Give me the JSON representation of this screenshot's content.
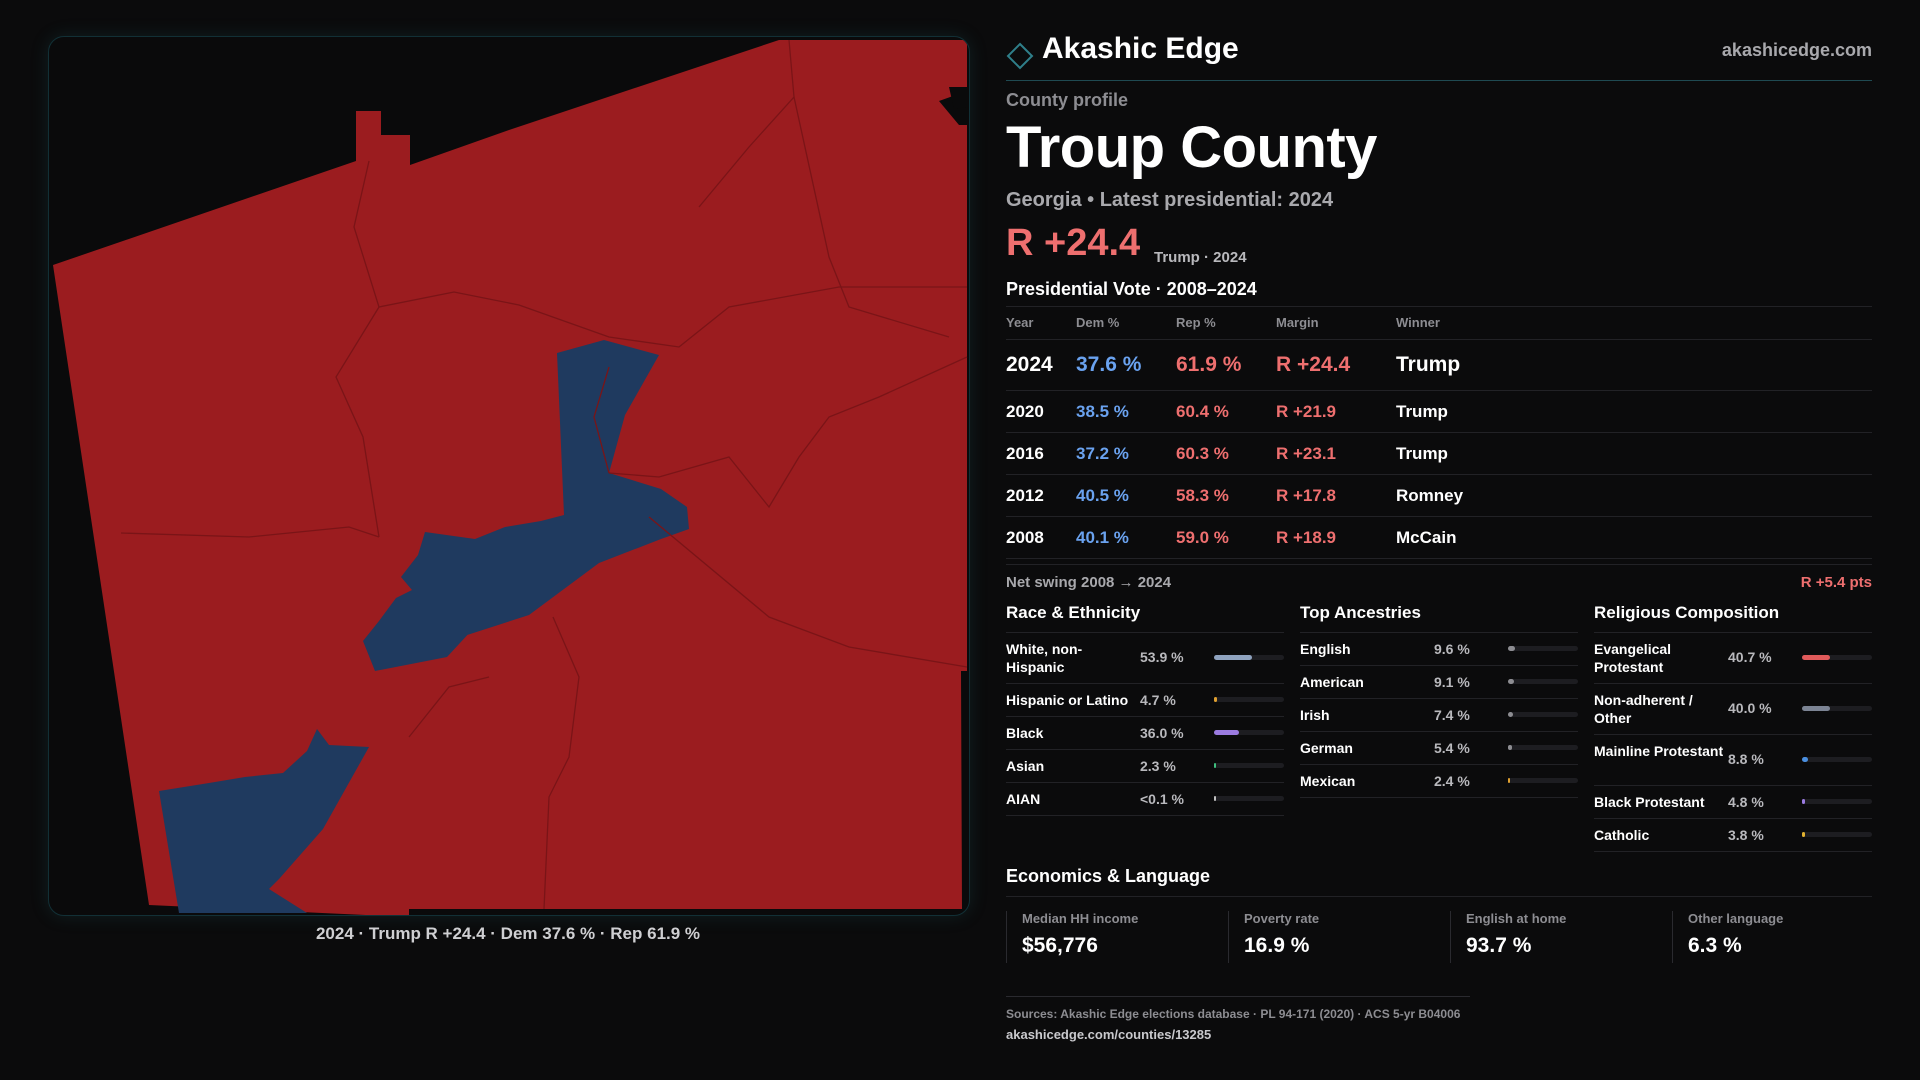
{
  "brand": {
    "name": "Akashic Edge",
    "url": "akashicedge.com"
  },
  "profile": {
    "kicker": "County profile",
    "county": "Troup County",
    "subtitle": "Georgia • Latest presidential: 2024",
    "margin": "R +24.4",
    "margin_note": "Trump · 2024"
  },
  "map": {
    "caption": "2024 · Trump R +24.4 · Dem 37.6 % · Rep 61.9 %",
    "legend_colors": {
      "rep": "#9b1c1f",
      "dem": "#1f3a5f"
    }
  },
  "vote": {
    "title": "Presidential Vote · 2008–2024",
    "headers": {
      "year": "Year",
      "dem": "Dem %",
      "rep": "Rep %",
      "margin": "Margin",
      "winner": "Winner"
    },
    "rows": [
      {
        "year": "2024",
        "dem": "37.6 %",
        "rep": "61.9 %",
        "margin": "R +24.4",
        "winner": "Trump"
      },
      {
        "year": "2020",
        "dem": "38.5 %",
        "rep": "60.4 %",
        "margin": "R +21.9",
        "winner": "Trump"
      },
      {
        "year": "2016",
        "dem": "37.2 %",
        "rep": "60.3 %",
        "margin": "R +23.1",
        "winner": "Trump"
      },
      {
        "year": "2012",
        "dem": "40.5 %",
        "rep": "58.3 %",
        "margin": "R +17.8",
        "winner": "Romney"
      },
      {
        "year": "2008",
        "dem": "40.1 %",
        "rep": "59.0 %",
        "margin": "R +18.9",
        "winner": "McCain"
      }
    ],
    "swing_label": "Net swing 2008 → 2024",
    "swing_value": "R +5.4 pts"
  },
  "race": {
    "title": "Race & Ethnicity",
    "items": [
      {
        "label": "White, non-Hispanic",
        "value": "53.9 %",
        "pct": 53.9,
        "color": "#8fa3bf"
      },
      {
        "label": "Hispanic or Latino",
        "value": "4.7 %",
        "pct": 4.7,
        "color": "#e0a030"
      },
      {
        "label": "Black",
        "value": "36.0 %",
        "pct": 36.0,
        "color": "#9b7be0"
      },
      {
        "label": "Asian",
        "value": "2.3 %",
        "pct": 2.3,
        "color": "#3fbf7f"
      },
      {
        "label": "AIAN",
        "value": "<0.1 %",
        "pct": 0.05,
        "color": "#c0c0c0"
      }
    ]
  },
  "ancestry": {
    "title": "Top Ancestries",
    "items": [
      {
        "label": "English",
        "value": "9.6 %",
        "pct": 9.6,
        "color": "#8d8d92"
      },
      {
        "label": "American",
        "value": "9.1 %",
        "pct": 9.1,
        "color": "#8d8d92"
      },
      {
        "label": "Irish",
        "value": "7.4 %",
        "pct": 7.4,
        "color": "#8d8d92"
      },
      {
        "label": "German",
        "value": "5.4 %",
        "pct": 5.4,
        "color": "#8d8d92"
      },
      {
        "label": "Mexican",
        "value": "2.4 %",
        "pct": 2.4,
        "color": "#e0a030"
      }
    ]
  },
  "religion": {
    "title": "Religious Composition",
    "items": [
      {
        "label": "Evangelical Protestant",
        "value": "40.7 %",
        "pct": 40.7,
        "color": "#e05a5a"
      },
      {
        "label": "Non-adherent / Other",
        "value": "40.0 %",
        "pct": 40.0,
        "color": "#7c8494"
      },
      {
        "label": "Mainline Protestant",
        "value": "8.8 %",
        "pct": 8.8,
        "color": "#4a8fe0"
      },
      {
        "label": "Black Protestant",
        "value": "4.8 %",
        "pct": 4.8,
        "color": "#9b7be0"
      },
      {
        "label": "Catholic",
        "value": "3.8 %",
        "pct": 3.8,
        "color": "#e0b030"
      }
    ]
  },
  "economics": {
    "title": "Economics & Language",
    "items": [
      {
        "label": "Median HH income",
        "value": "$56,776"
      },
      {
        "label": "Poverty rate",
        "value": "16.9 %"
      },
      {
        "label": "English at home",
        "value": "93.7 %"
      },
      {
        "label": "Other language",
        "value": "6.3 %"
      }
    ]
  },
  "footer": {
    "sources": "Sources: Akashic Edge elections database · PL 94-171 (2020) · ACS 5-yr B04006",
    "url": "akashicedge.com/counties/13285"
  }
}
